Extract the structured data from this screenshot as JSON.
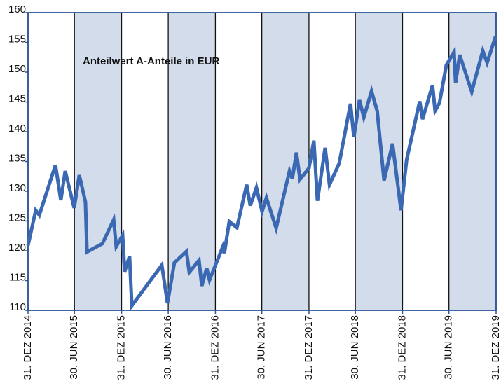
{
  "chart_data": {
    "type": "line",
    "title": "Anteilwert A-Anteile in EUR",
    "x": [
      "2014-12-31",
      "2015-01-30",
      "2015-02-13",
      "2015-04-17",
      "2015-05-08",
      "2015-05-25",
      "2015-06-29",
      "2015-07-19",
      "2015-08-12",
      "2015-08-18",
      "2015-10-17",
      "2015-11-30",
      "2015-12-10",
      "2016-01-04",
      "2016-01-12",
      "2016-01-31",
      "2016-02-09",
      "2016-06-05",
      "2016-06-27",
      "2016-07-24",
      "2016-09-09",
      "2016-09-20",
      "2016-10-28",
      "2016-11-08",
      "2016-11-27",
      "2016-12-08",
      "2017-01-29",
      "2017-02-04",
      "2017-02-23",
      "2017-03-25",
      "2017-05-02",
      "2017-05-16",
      "2017-06-09",
      "2017-07-01",
      "2017-07-18",
      "2017-08-25",
      "2017-10-16",
      "2017-10-27",
      "2017-11-12",
      "2017-11-26",
      "2017-12-31",
      "2018-01-19",
      "2018-02-02",
      "2018-03-04",
      "2018-03-21",
      "2018-04-28",
      "2018-06-11",
      "2018-06-24",
      "2018-07-16",
      "2018-08-02",
      "2018-09-01",
      "2018-09-23",
      "2018-10-20",
      "2018-11-22",
      "2018-12-25",
      "2019-01-16",
      "2019-03-08",
      "2019-03-19",
      "2019-04-27",
      "2019-05-07",
      "2019-05-24",
      "2019-06-20",
      "2019-07-20",
      "2019-07-26",
      "2019-08-11",
      "2019-09-27",
      "2019-11-09",
      "2019-11-26",
      "2019-12-29"
    ],
    "series": [
      {
        "name": "Anteilwert A-Anteile in EUR",
        "color": "#3a68b2",
        "values": [
          120.9,
          126.8,
          126.0,
          134.4,
          128.5,
          133.4,
          127.2,
          132.7,
          128.2,
          119.8,
          121.2,
          125.2,
          120.7,
          122.6,
          116.5,
          119.1,
          110.8,
          117.6,
          111.2,
          118.0,
          119.9,
          116.4,
          118.4,
          114.1,
          117.1,
          115.1,
          120.7,
          119.6,
          124.9,
          123.9,
          131.1,
          127.6,
          130.6,
          126.6,
          128.9,
          123.8,
          133.4,
          132.1,
          136.5,
          132.0,
          133.9,
          138.5,
          128.4,
          137.3,
          131.1,
          134.7,
          144.7,
          139.1,
          145.3,
          142.4,
          146.8,
          143.5,
          131.8,
          138.0,
          126.8,
          135.3,
          145.1,
          142.1,
          147.8,
          143.5,
          144.8,
          151.2,
          153.4,
          148.2,
          152.9,
          146.7,
          153.6,
          151.6,
          156.0
        ]
      }
    ],
    "xlim": [
      "2014-12-31",
      "2019-12-31"
    ],
    "xticks": [
      {
        "value": "2014-12-31",
        "label": "31. DEZ 2014"
      },
      {
        "value": "2015-06-30",
        "label": "30. JUN 2015"
      },
      {
        "value": "2015-12-31",
        "label": "31. DEZ 2015"
      },
      {
        "value": "2016-06-30",
        "label": "30. JUN 2016"
      },
      {
        "value": "2016-12-31",
        "label": "31. DEZ 2016"
      },
      {
        "value": "2017-06-30",
        "label": "30. JUN 2017"
      },
      {
        "value": "2017-12-31",
        "label": "31. DEZ 2017"
      },
      {
        "value": "2018-06-30",
        "label": "30. JUN 2018"
      },
      {
        "value": "2018-12-31",
        "label": "31. DEZ 2018"
      },
      {
        "value": "2019-06-30",
        "label": "30. JUN 2019"
      },
      {
        "value": "2019-12-31",
        "label": "31. DEZ 2019"
      }
    ],
    "ylim": [
      110,
      160
    ],
    "yticks": [
      110,
      115,
      120,
      125,
      130,
      135,
      140,
      145,
      150,
      155,
      160
    ],
    "band_color": "#d3dcea",
    "grid": true
  }
}
